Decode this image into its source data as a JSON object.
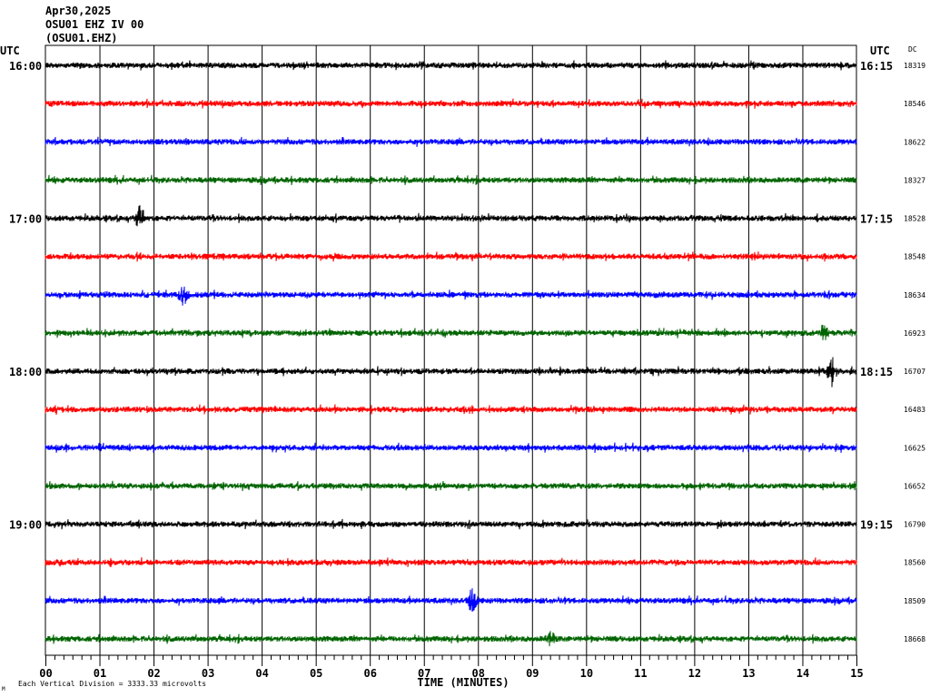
{
  "header": {
    "date": "Apr30,2025",
    "station_line": "OSU01 EHZ IV 00",
    "station_code": "(OSU01.EHZ)"
  },
  "left_axis_label": "UTC",
  "right_axis_label": "UTC",
  "dc_label": "DC",
  "footer_note": "Each Vertical Division = 3333.33 microvolts",
  "corner_mark": "M",
  "chart_data": {
    "type": "line",
    "title": "",
    "xlabel": "TIME (MINUTES)",
    "x_ticks": [
      "00",
      "01",
      "02",
      "03",
      "04",
      "05",
      "06",
      "07",
      "08",
      "09",
      "10",
      "11",
      "12",
      "13",
      "14",
      "15"
    ],
    "xlim": [
      0,
      15
    ],
    "grid": "vertical lines at each minute",
    "colors": [
      "#000000",
      "#ff0000",
      "#0000ff",
      "#006400"
    ],
    "rows": [
      {
        "left": "16:00",
        "right": "16:15",
        "dc": "18319",
        "color": "#000000"
      },
      {
        "left": "",
        "right": "",
        "dc": "18546",
        "color": "#ff0000"
      },
      {
        "left": "",
        "right": "",
        "dc": "18622",
        "color": "#0000ff"
      },
      {
        "left": "",
        "right": "",
        "dc": "18327",
        "color": "#006400"
      },
      {
        "left": "17:00",
        "right": "17:15",
        "dc": "18528",
        "color": "#000000"
      },
      {
        "left": "",
        "right": "",
        "dc": "18548",
        "color": "#ff0000"
      },
      {
        "left": "",
        "right": "",
        "dc": "18634",
        "color": "#0000ff"
      },
      {
        "left": "",
        "right": "",
        "dc": "16923",
        "color": "#006400"
      },
      {
        "left": "18:00",
        "right": "18:15",
        "dc": "16707",
        "color": "#000000"
      },
      {
        "left": "",
        "right": "",
        "dc": "16483",
        "color": "#ff0000"
      },
      {
        "left": "",
        "right": "",
        "dc": "16625",
        "color": "#0000ff"
      },
      {
        "left": "",
        "right": "",
        "dc": "16652",
        "color": "#006400"
      },
      {
        "left": "19:00",
        "right": "19:15",
        "dc": "16790",
        "color": "#000000"
      },
      {
        "left": "",
        "right": "",
        "dc": "18560",
        "color": "#ff0000"
      },
      {
        "left": "",
        "right": "",
        "dc": "18509",
        "color": "#0000ff"
      },
      {
        "left": "",
        "right": "",
        "dc": "18668",
        "color": "#006400"
      }
    ],
    "events": [
      {
        "row": 4,
        "minute": 1.75,
        "amplitude": 2.4
      },
      {
        "row": 6,
        "minute": 2.55,
        "amplitude": 1.8
      },
      {
        "row": 7,
        "minute": 14.4,
        "amplitude": 1.2
      },
      {
        "row": 8,
        "minute": 14.55,
        "amplitude": 2.6
      },
      {
        "row": 14,
        "minute": 7.9,
        "amplitude": 2.2
      },
      {
        "row": 15,
        "minute": 9.35,
        "amplitude": 1.3
      }
    ]
  }
}
